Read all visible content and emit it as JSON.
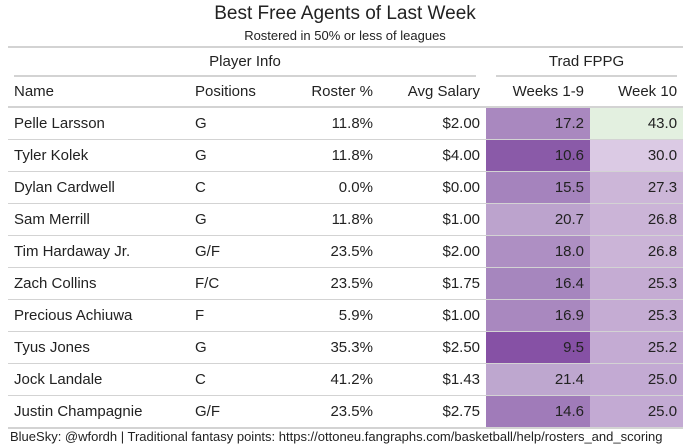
{
  "title": "Best Free Agents of Last Week",
  "subtitle": "Rostered in 50% or less of leagues",
  "spanners": {
    "player_info": "Player Info",
    "trad_fppg": "Trad FPPG"
  },
  "columns": [
    "Name",
    "Positions",
    "Roster %",
    "Avg Salary",
    "Weeks 1-9",
    "Week 10"
  ],
  "rows": [
    {
      "name": "Pelle Larsson",
      "positions": "G",
      "roster_pct": "11.8%",
      "avg_salary": "$2.00",
      "weeks_1_9": "17.2",
      "week_10": "43.0"
    },
    {
      "name": "Tyler Kolek",
      "positions": "G",
      "roster_pct": "11.8%",
      "avg_salary": "$4.00",
      "weeks_1_9": "10.6",
      "week_10": "30.0"
    },
    {
      "name": "Dylan Cardwell",
      "positions": "C",
      "roster_pct": "0.0%",
      "avg_salary": "$0.00",
      "weeks_1_9": "15.5",
      "week_10": "27.3"
    },
    {
      "name": "Sam Merrill",
      "positions": "G",
      "roster_pct": "11.8%",
      "avg_salary": "$1.00",
      "weeks_1_9": "20.7",
      "week_10": "26.8"
    },
    {
      "name": "Tim Hardaway Jr.",
      "positions": "G/F",
      "roster_pct": "23.5%",
      "avg_salary": "$2.00",
      "weeks_1_9": "18.0",
      "week_10": "26.8"
    },
    {
      "name": "Zach Collins",
      "positions": "F/C",
      "roster_pct": "23.5%",
      "avg_salary": "$1.75",
      "weeks_1_9": "16.4",
      "week_10": "25.3"
    },
    {
      "name": "Precious Achiuwa",
      "positions": "F",
      "roster_pct": "5.9%",
      "avg_salary": "$1.00",
      "weeks_1_9": "16.9",
      "week_10": "25.3"
    },
    {
      "name": "Tyus Jones",
      "positions": "G",
      "roster_pct": "35.3%",
      "avg_salary": "$2.50",
      "weeks_1_9": "9.5",
      "week_10": "25.2"
    },
    {
      "name": "Jock Landale",
      "positions": "C",
      "roster_pct": "41.2%",
      "avg_salary": "$1.43",
      "weeks_1_9": "21.4",
      "week_10": "25.0"
    },
    {
      "name": "Justin Champagnie",
      "positions": "G/F",
      "roster_pct": "23.5%",
      "avg_salary": "$2.75",
      "weeks_1_9": "14.6",
      "week_10": "25.0"
    }
  ],
  "cell_colors": {
    "weeks_1_9": [
      "#a988bf",
      "#8a5aa8",
      "#a583bd",
      "#bca3cd",
      "#ae8fc3",
      "#a686be",
      "#a988bf",
      "#8651a5",
      "#bea7cf",
      "#a07bb9"
    ],
    "week_10": [
      "#e3f0e0",
      "#dbcae4",
      "#ccb6d8",
      "#cbb4d7",
      "#cbb4d7",
      "#c5acd3",
      "#c5acd3",
      "#c4abd3",
      "#c3aad3",
      "#c3aad3"
    ]
  },
  "footer": "BlueSky: @wfordh | Traditional fantasy points: https://ottoneu.fangraphs.com/basketball/help/rosters_and_scoring"
}
